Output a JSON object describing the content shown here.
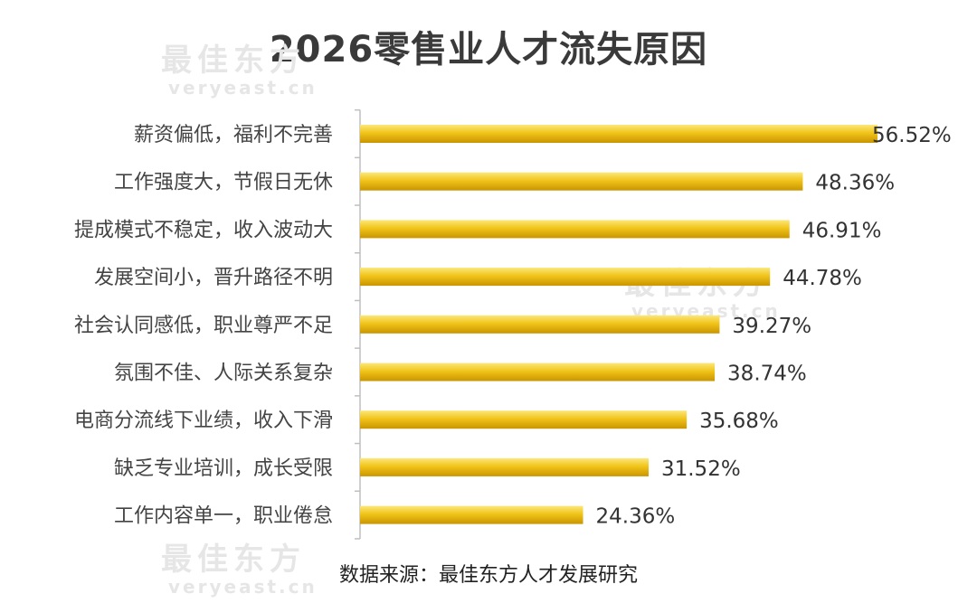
{
  "title": "2026零售业人才流失原因",
  "source": "数据来源：最佳东方人才发展研究",
  "watermark": {
    "name": "最佳东方",
    "url": "veryeast.cn"
  },
  "colors": {
    "bar_light": "#f8dc4a",
    "bar_dark": "#cc9800",
    "axis": "#bfbfbf"
  },
  "chart_data": {
    "type": "bar",
    "orientation": "horizontal",
    "title": "2026零售业人才流失原因",
    "categories": [
      "薪资偏低，福利不完善",
      "工作强度大，节假日无休",
      "提成模式不稳定，收入波动大",
      "发展空间小，晋升路径不明",
      "社会认同感低，职业尊严不足",
      "氛围不佳、人际关系复杂",
      "电商分流线下业绩，收入下滑",
      "缺乏专业培训，成长受限",
      "工作内容单一，职业倦怠"
    ],
    "values": [
      56.52,
      48.36,
      46.91,
      44.78,
      39.27,
      38.74,
      35.68,
      31.52,
      24.36
    ],
    "value_labels": [
      "56.52%",
      "48.36%",
      "46.91%",
      "44.78%",
      "39.27%",
      "38.74%",
      "35.68%",
      "31.52%",
      "24.36%"
    ],
    "unit": "%",
    "xlim": [
      0,
      56.52
    ],
    "grid": false,
    "legend": "none"
  }
}
